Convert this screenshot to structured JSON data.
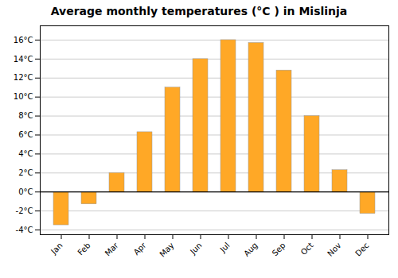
{
  "chart_data": {
    "type": "bar",
    "title": "Average monthly temperatures (°C ) in Mislinja",
    "categories": [
      "Jan",
      "Feb",
      "Mar",
      "Apr",
      "May",
      "Jun",
      "Jul",
      "Aug",
      "Sep",
      "Oct",
      "Nov",
      "Dec"
    ],
    "values": [
      -3.5,
      -1.3,
      2.0,
      6.3,
      11.0,
      14.0,
      16.0,
      15.7,
      12.8,
      8.0,
      2.3,
      -2.3
    ],
    "color": "#FFA826",
    "ylim": [
      -4.5,
      17.5
    ],
    "yticks": [
      {
        "value": -4,
        "label": "-4°C"
      },
      {
        "value": -2,
        "label": "-2°C"
      },
      {
        "value": 0,
        "label": "0°C"
      },
      {
        "value": 2,
        "label": "2°C"
      },
      {
        "value": 4,
        "label": "4°C"
      },
      {
        "value": 6,
        "label": "6°C"
      },
      {
        "value": 8,
        "label": "8°C"
      },
      {
        "value": 10,
        "label": "10°C"
      },
      {
        "value": 12,
        "label": "12°C"
      },
      {
        "value": 14,
        "label": "14°C"
      },
      {
        "value": 16,
        "label": "16°C"
      }
    ],
    "grid": true
  }
}
